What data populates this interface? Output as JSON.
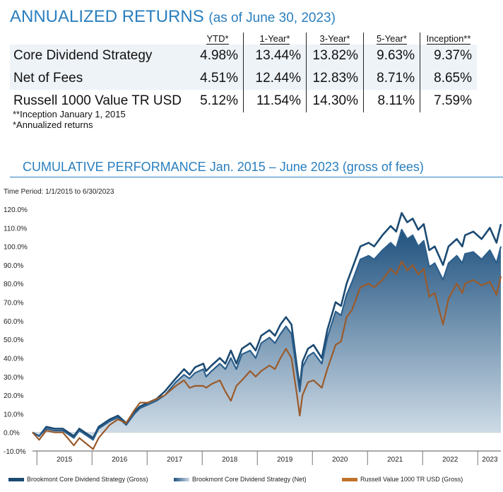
{
  "header": {
    "title": "ANNUALIZED RETURNS",
    "subtitle": "(as of June 30, 2023)"
  },
  "returns_table": {
    "columns": [
      "YTD*",
      "1-Year*",
      "3-Year*",
      "5-Year*",
      "Inception**"
    ],
    "rows": [
      {
        "name": "Core Dividend Strategy",
        "values": [
          "4.98%",
          "13.44%",
          "13.82%",
          "9.63%",
          "9.37%"
        ]
      },
      {
        "name": "Net of Fees",
        "values": [
          "4.51%",
          "12.44%",
          "12.83%",
          "8.71%",
          "8.65%"
        ]
      },
      {
        "name": "Russell 1000 Value TR USD",
        "values": [
          "5.12%",
          "11.54%",
          "14.30%",
          "8.11%",
          "7.59%"
        ]
      }
    ]
  },
  "notes": [
    "**Inception January 1, 2015",
    "*Annualized returns"
  ],
  "cumulative_title": "CUMULATIVE PERFORMANCE Jan. 2015 – June 2023 (gross of fees)",
  "time_period": "Time Period: 1/1/2015 to 6/30/2023",
  "legend": [
    {
      "label": "Brookmont Core Dividend Strategy (Gross)",
      "color": "#1b4a72"
    },
    {
      "label": "Brookmont Core Dividend Strategy (Net)",
      "color": "#3f74a0"
    },
    {
      "label": "Russell Value 1000 TR USD (Gross)",
      "color": "#c0722a"
    }
  ],
  "chart_data": {
    "type": "area",
    "ylim": [
      -10,
      120
    ],
    "y_ticks": [
      "120.0%",
      "110.0%",
      "100.0%",
      "90.0%",
      "80.0%",
      "70.0%",
      "60.0%",
      "50.0%",
      "40.0%",
      "30.0%",
      "20.0%",
      "10.0%",
      "0.0%",
      "-10.0%"
    ],
    "x_ticks": [
      {
        "label": "2015",
        "x": 2015.58
      },
      {
        "label": "2016",
        "x": 2016.58
      },
      {
        "label": "2017",
        "x": 2017.58
      },
      {
        "label": "2018",
        "x": 2018.58
      },
      {
        "label": "2019",
        "x": 2019.58
      },
      {
        "label": "2020",
        "x": 2020.58
      },
      {
        "label": "2021",
        "x": 2021.58
      },
      {
        "label": "2022",
        "x": 2022.58
      },
      {
        "label": "2023",
        "x": 2023.3
      }
    ],
    "xlim": [
      2015.0,
      2023.5
    ],
    "series": [
      {
        "name": "Brookmont Core Dividend Strategy (Gross)",
        "points": [
          [
            2015.0,
            0
          ],
          [
            2015.12,
            -2
          ],
          [
            2015.25,
            3
          ],
          [
            2015.4,
            2
          ],
          [
            2015.55,
            2
          ],
          [
            2015.75,
            -2
          ],
          [
            2015.85,
            2
          ],
          [
            2016.1,
            -3
          ],
          [
            2016.2,
            3
          ],
          [
            2016.4,
            7
          ],
          [
            2016.55,
            9
          ],
          [
            2016.7,
            5
          ],
          [
            2016.85,
            11
          ],
          [
            2016.95,
            14
          ],
          [
            2017.1,
            16
          ],
          [
            2017.25,
            18
          ],
          [
            2017.4,
            22
          ],
          [
            2017.6,
            29
          ],
          [
            2017.75,
            34
          ],
          [
            2017.85,
            31
          ],
          [
            2017.95,
            35
          ],
          [
            2018.1,
            37
          ],
          [
            2018.15,
            33
          ],
          [
            2018.25,
            36
          ],
          [
            2018.4,
            40
          ],
          [
            2018.5,
            37
          ],
          [
            2018.6,
            44
          ],
          [
            2018.7,
            37
          ],
          [
            2018.8,
            45
          ],
          [
            2018.95,
            48
          ],
          [
            2019.05,
            44
          ],
          [
            2019.15,
            52
          ],
          [
            2019.3,
            55
          ],
          [
            2019.4,
            52
          ],
          [
            2019.5,
            58
          ],
          [
            2019.6,
            62
          ],
          [
            2019.7,
            58
          ],
          [
            2019.8,
            35
          ],
          [
            2019.85,
            24
          ],
          [
            2019.9,
            38
          ],
          [
            2020.0,
            45
          ],
          [
            2020.1,
            47
          ],
          [
            2020.25,
            40
          ],
          [
            2020.35,
            55
          ],
          [
            2020.5,
            70
          ],
          [
            2020.6,
            68
          ],
          [
            2020.7,
            80
          ],
          [
            2020.8,
            88
          ],
          [
            2020.95,
            100
          ],
          [
            2021.1,
            102
          ],
          [
            2021.2,
            100
          ],
          [
            2021.35,
            106
          ],
          [
            2021.5,
            111
          ],
          [
            2021.6,
            108
          ],
          [
            2021.7,
            118
          ],
          [
            2021.8,
            113
          ],
          [
            2021.9,
            115
          ],
          [
            2022.0,
            109
          ],
          [
            2022.1,
            112
          ],
          [
            2022.2,
            98
          ],
          [
            2022.3,
            100
          ],
          [
            2022.45,
            90
          ],
          [
            2022.55,
            100
          ],
          [
            2022.7,
            104
          ],
          [
            2022.8,
            100
          ],
          [
            2022.85,
            106
          ],
          [
            2023.0,
            108
          ],
          [
            2023.15,
            104
          ],
          [
            2023.3,
            110
          ],
          [
            2023.42,
            102
          ],
          [
            2023.5,
            112
          ]
        ]
      },
      {
        "name": "Brookmont Core Dividend Strategy (Net)",
        "points": [
          [
            2015.0,
            0
          ],
          [
            2015.12,
            -2
          ],
          [
            2015.25,
            2
          ],
          [
            2015.4,
            1
          ],
          [
            2015.55,
            1
          ],
          [
            2015.75,
            -3
          ],
          [
            2015.85,
            1
          ],
          [
            2016.1,
            -4
          ],
          [
            2016.2,
            2
          ],
          [
            2016.4,
            6
          ],
          [
            2016.55,
            8
          ],
          [
            2016.7,
            4
          ],
          [
            2016.85,
            10
          ],
          [
            2016.95,
            13
          ],
          [
            2017.1,
            15
          ],
          [
            2017.25,
            17
          ],
          [
            2017.4,
            20
          ],
          [
            2017.6,
            27
          ],
          [
            2017.75,
            31
          ],
          [
            2017.85,
            29
          ],
          [
            2017.95,
            32
          ],
          [
            2018.1,
            34
          ],
          [
            2018.15,
            30
          ],
          [
            2018.25,
            33
          ],
          [
            2018.4,
            37
          ],
          [
            2018.5,
            34
          ],
          [
            2018.6,
            40
          ],
          [
            2018.7,
            34
          ],
          [
            2018.8,
            42
          ],
          [
            2018.95,
            44
          ],
          [
            2019.05,
            40
          ],
          [
            2019.15,
            48
          ],
          [
            2019.3,
            51
          ],
          [
            2019.4,
            48
          ],
          [
            2019.5,
            53
          ],
          [
            2019.6,
            57
          ],
          [
            2019.7,
            53
          ],
          [
            2019.8,
            32
          ],
          [
            2019.85,
            22
          ],
          [
            2019.9,
            35
          ],
          [
            2020.0,
            41
          ],
          [
            2020.1,
            43
          ],
          [
            2020.25,
            37
          ],
          [
            2020.35,
            51
          ],
          [
            2020.5,
            65
          ],
          [
            2020.6,
            63
          ],
          [
            2020.7,
            74
          ],
          [
            2020.8,
            81
          ],
          [
            2020.95,
            93
          ],
          [
            2021.1,
            95
          ],
          [
            2021.2,
            93
          ],
          [
            2021.35,
            98
          ],
          [
            2021.5,
            102
          ],
          [
            2021.6,
            99
          ],
          [
            2021.7,
            109
          ],
          [
            2021.8,
            104
          ],
          [
            2021.9,
            106
          ],
          [
            2022.0,
            100
          ],
          [
            2022.1,
            103
          ],
          [
            2022.2,
            89
          ],
          [
            2022.3,
            91
          ],
          [
            2022.45,
            82
          ],
          [
            2022.55,
            91
          ],
          [
            2022.7,
            95
          ],
          [
            2022.8,
            91
          ],
          [
            2022.85,
            96
          ],
          [
            2023.0,
            97
          ],
          [
            2023.15,
            93
          ],
          [
            2023.3,
            98
          ],
          [
            2023.42,
            91
          ],
          [
            2023.5,
            100
          ]
        ]
      },
      {
        "name": "Russell Value 1000 TR USD (Gross)",
        "points": [
          [
            2015.0,
            0
          ],
          [
            2015.12,
            -4
          ],
          [
            2015.25,
            1
          ],
          [
            2015.4,
            0
          ],
          [
            2015.55,
            0
          ],
          [
            2015.75,
            -7
          ],
          [
            2015.85,
            -3
          ],
          [
            2016.1,
            -9
          ],
          [
            2016.2,
            -3
          ],
          [
            2016.4,
            4
          ],
          [
            2016.55,
            7
          ],
          [
            2016.7,
            5
          ],
          [
            2016.85,
            12
          ],
          [
            2016.95,
            16
          ],
          [
            2017.1,
            16
          ],
          [
            2017.25,
            18
          ],
          [
            2017.4,
            20
          ],
          [
            2017.6,
            25
          ],
          [
            2017.75,
            28
          ],
          [
            2017.85,
            24
          ],
          [
            2017.95,
            25
          ],
          [
            2018.1,
            25
          ],
          [
            2018.15,
            24
          ],
          [
            2018.25,
            26
          ],
          [
            2018.4,
            28
          ],
          [
            2018.5,
            22
          ],
          [
            2018.6,
            17
          ],
          [
            2018.7,
            25
          ],
          [
            2018.8,
            28
          ],
          [
            2018.95,
            33
          ],
          [
            2019.05,
            30
          ],
          [
            2019.15,
            33
          ],
          [
            2019.3,
            36
          ],
          [
            2019.4,
            34
          ],
          [
            2019.5,
            40
          ],
          [
            2019.6,
            45
          ],
          [
            2019.7,
            40
          ],
          [
            2019.8,
            20
          ],
          [
            2019.85,
            9
          ],
          [
            2019.9,
            20
          ],
          [
            2020.0,
            27
          ],
          [
            2020.1,
            28
          ],
          [
            2020.25,
            24
          ],
          [
            2020.35,
            34
          ],
          [
            2020.5,
            47
          ],
          [
            2020.6,
            49
          ],
          [
            2020.7,
            62
          ],
          [
            2020.8,
            66
          ],
          [
            2020.95,
            78
          ],
          [
            2021.1,
            80
          ],
          [
            2021.2,
            78
          ],
          [
            2021.35,
            82
          ],
          [
            2021.5,
            88
          ],
          [
            2021.6,
            85
          ],
          [
            2021.7,
            92
          ],
          [
            2021.8,
            87
          ],
          [
            2021.9,
            90
          ],
          [
            2022.0,
            85
          ],
          [
            2022.1,
            88
          ],
          [
            2022.2,
            73
          ],
          [
            2022.3,
            75
          ],
          [
            2022.45,
            58
          ],
          [
            2022.55,
            72
          ],
          [
            2022.7,
            80
          ],
          [
            2022.8,
            75
          ],
          [
            2022.85,
            80
          ],
          [
            2023.0,
            82
          ],
          [
            2023.15,
            79
          ],
          [
            2023.3,
            81
          ],
          [
            2023.42,
            74
          ],
          [
            2023.5,
            84
          ]
        ]
      }
    ]
  }
}
